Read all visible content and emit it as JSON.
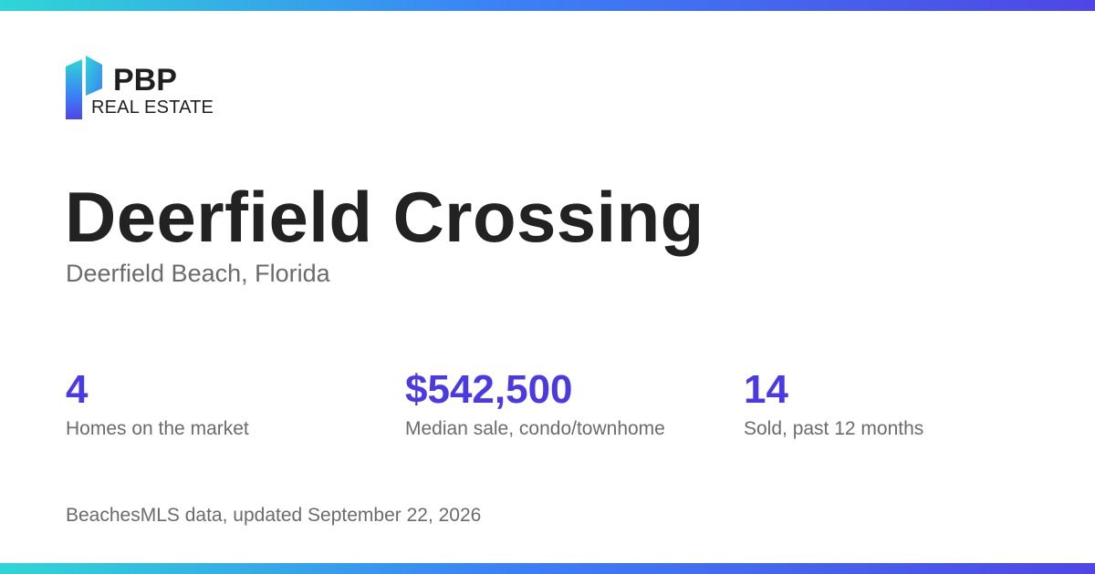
{
  "brand": {
    "icon": "pbp-logo-icon",
    "name": "PBP",
    "subtitle": "REAL ESTATE",
    "colors": {
      "logo_top": "#2fd6d6",
      "logo_bottom": "#4f46e5",
      "text": "#1f1f1f"
    }
  },
  "header": {
    "title": "Deerfield Crossing",
    "location": "Deerfield Beach, Florida"
  },
  "stats": [
    {
      "value": "4",
      "label": "Homes on the market"
    },
    {
      "value": "$542,500",
      "label": "Median sale, condo/townhome"
    },
    {
      "value": "14",
      "label": "Sold, past 12 months"
    }
  ],
  "footer": {
    "note": "BeachesMLS data, updated September 22, 2026"
  },
  "theme": {
    "accent": "#4a3ae6",
    "title_color": "#222222",
    "muted_text": "#6b6b6b",
    "gradient_start": "#2fd6d6",
    "gradient_mid": "#3b82f6",
    "gradient_end": "#4f46e5"
  }
}
